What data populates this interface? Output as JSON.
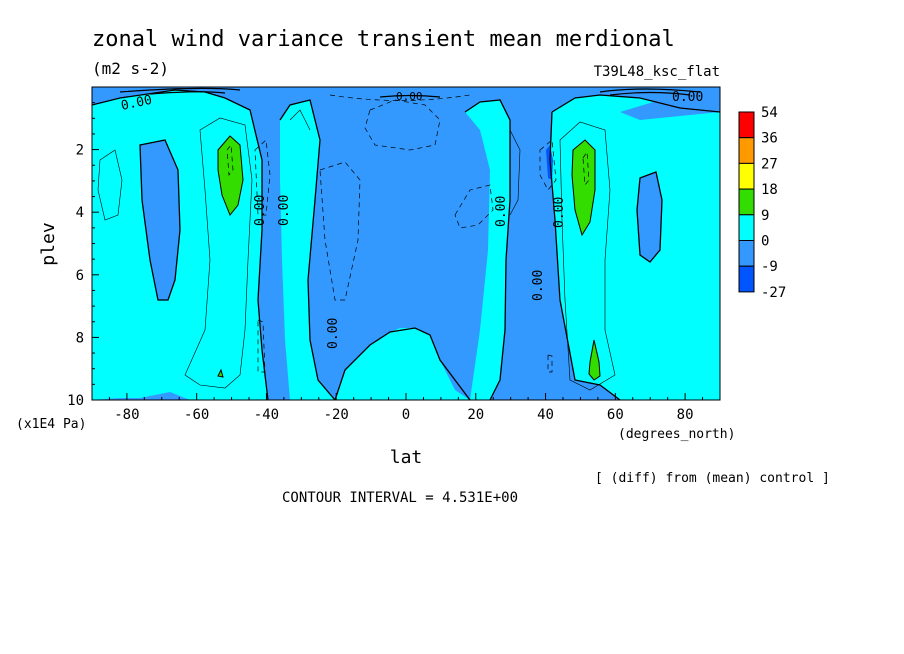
{
  "chart_data": {
    "type": "heatmap",
    "title": "zonal wind variance transient mean merdional",
    "units": "(m2 s-2)",
    "run_label": "T39L48_ksc_flat",
    "xlabel": "lat",
    "x_units": "(degrees_north)",
    "ylabel": "plev",
    "y_units": "(x1E4 Pa)",
    "xlim": [
      -90,
      90
    ],
    "ylim": [
      0,
      10
    ],
    "y_inverted": true,
    "x_ticks": [
      -80,
      -60,
      -40,
      -20,
      0,
      20,
      40,
      60,
      80
    ],
    "x_tick_labels": [
      "-80",
      "-60",
      "-40",
      "-20",
      "0",
      "20",
      "40",
      "60",
      "80"
    ],
    "y_ticks": [
      2,
      4,
      6,
      8,
      10
    ],
    "y_tick_labels": [
      "2",
      "4",
      "6",
      "8",
      "10"
    ],
    "colorbar": {
      "labels": [
        "54",
        "36",
        "27",
        "18",
        "9",
        "0",
        "-9",
        "-27"
      ],
      "colors": [
        "#ff0000",
        "#ff9900",
        "#ffff00",
        "#33dd00",
        "#00ffff",
        "#3399ff",
        "#0055ff"
      ]
    },
    "colors": {
      "negative": "#3399ff",
      "zero_to_9": "#00ffff",
      "nine_to_18": "#33dd00",
      "deep_negative": "#0055ff"
    },
    "contour_labels": [
      "0.00",
      "0.00",
      "0.00",
      "0.00",
      "0.00",
      "0.00",
      "0.00",
      "0.00",
      "0.00",
      "0.00"
    ],
    "footnote": "[ (diff) from (mean) control ]",
    "contour_interval": "CONTOUR INTERVAL = 4.531E+00"
  }
}
